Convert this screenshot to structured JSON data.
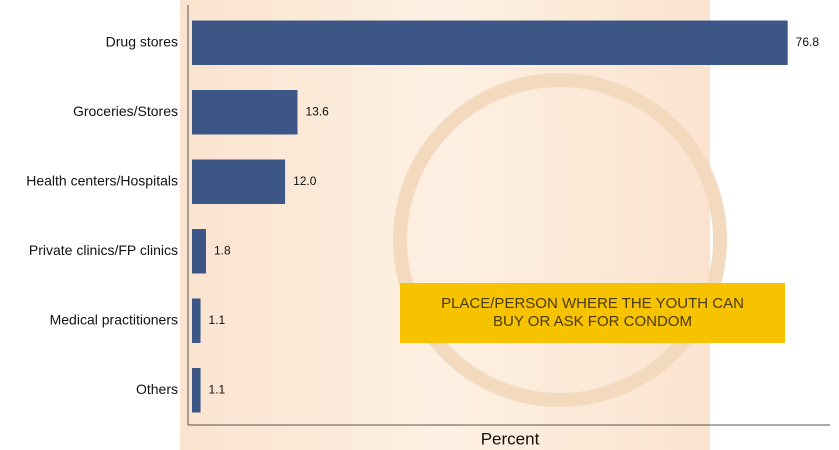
{
  "chart_data": {
    "type": "bar",
    "orientation": "horizontal",
    "x_label": "Percent",
    "annotation": "PLACE/PERSON WHERE THE YOUTH CAN BUY OR ASK FOR CONDOM",
    "categories": [
      "Drug stores",
      "Groceries/Stores",
      "Health centers/Hospitals",
      "Private clinics/FP clinics",
      "Medical practitioners",
      "Others"
    ],
    "values": [
      76.8,
      13.6,
      12.0,
      1.8,
      1.1,
      1.1
    ],
    "value_labels": [
      "76.8",
      "13.6",
      "12.0",
      "1.8",
      "1.1",
      "1.1"
    ],
    "color": "#3c5786",
    "xlim": [
      0,
      82
    ]
  }
}
